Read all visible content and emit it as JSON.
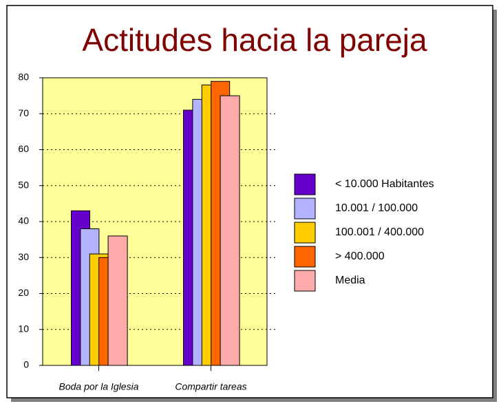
{
  "chart_data": {
    "type": "bar",
    "title": "Actitudes hacia la pareja",
    "categories": [
      "Boda por la Iglesia",
      "Compartir tareas"
    ],
    "series": [
      {
        "name": "< 10.000 Habitantes",
        "color": "#6600cc",
        "values": [
          43,
          71
        ]
      },
      {
        "name": "10.001 / 100.000",
        "color": "#b3b3ff",
        "values": [
          38,
          74
        ]
      },
      {
        "name": "100.001 / 400.000",
        "color": "#ffcc00",
        "values": [
          31,
          78
        ]
      },
      {
        "name": "> 400.000",
        "color": "#ff6600",
        "values": [
          30,
          79
        ]
      },
      {
        "name": "Media",
        "color": "#ffaaaa",
        "values": [
          36,
          75
        ]
      }
    ],
    "ylim": [
      0,
      80
    ],
    "yticks": [
      0,
      10,
      20,
      30,
      40,
      50,
      60,
      70,
      80
    ],
    "grid": true,
    "legend": "right"
  }
}
